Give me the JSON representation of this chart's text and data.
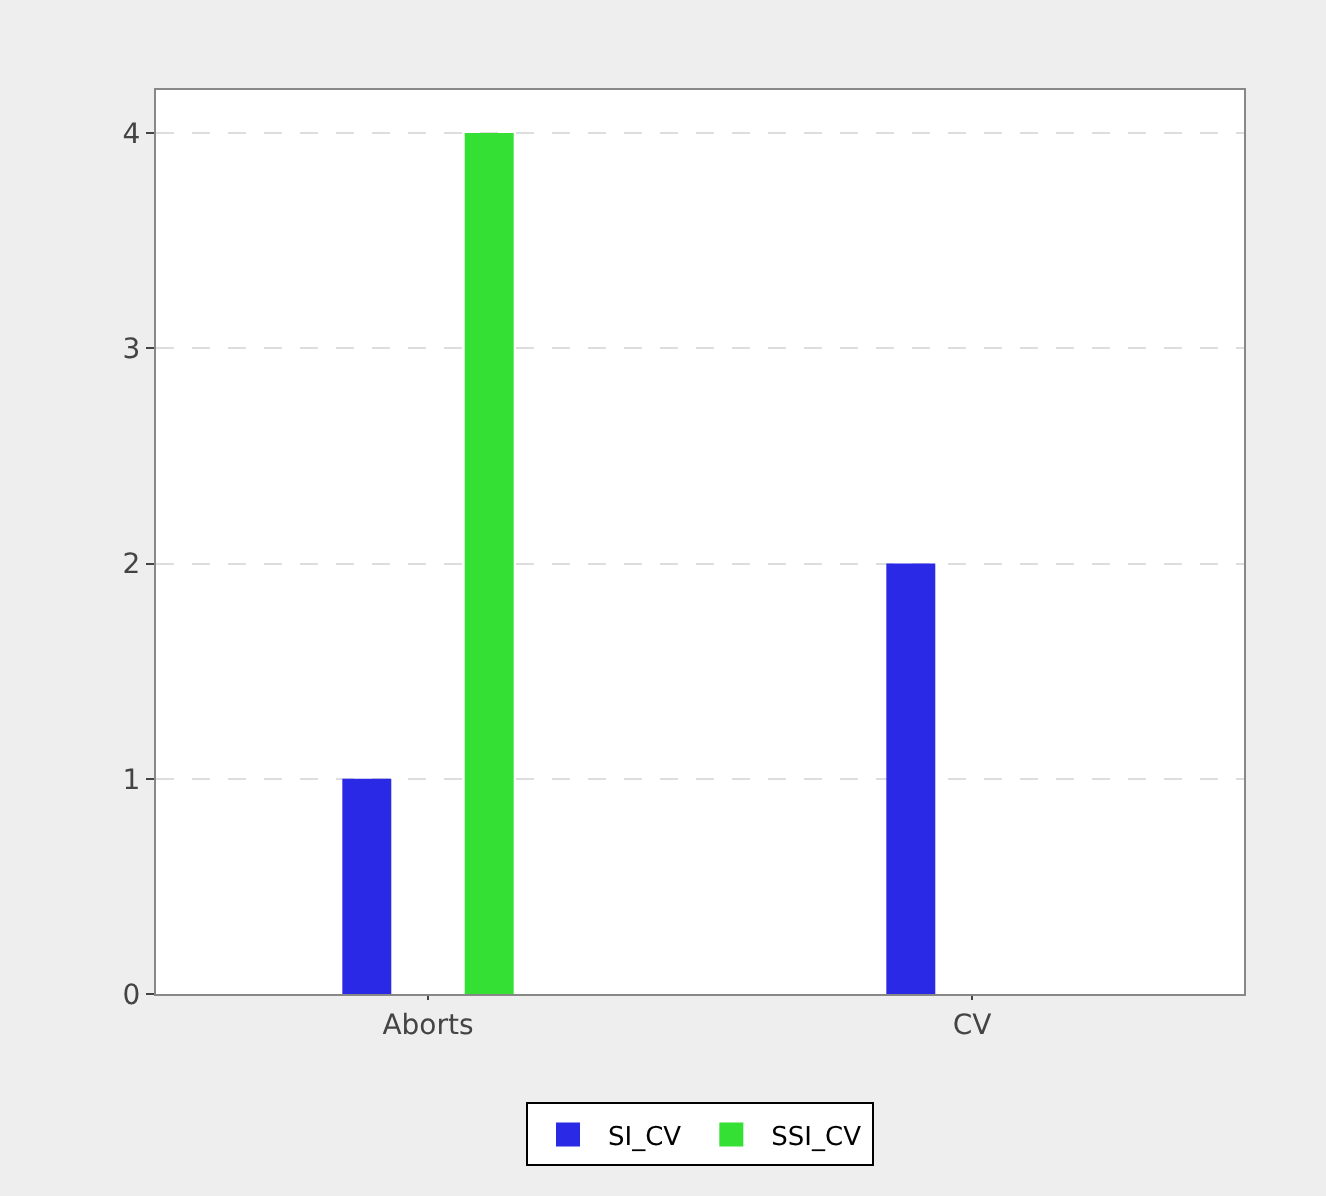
{
  "chart_data": {
    "type": "bar",
    "categories": [
      "Aborts",
      "CV"
    ],
    "series": [
      {
        "name": "SI_CV",
        "color": "#2a2ae6",
        "values": [
          1,
          2
        ]
      },
      {
        "name": "SSI_CV",
        "color": "#33e033",
        "values": [
          4,
          0
        ]
      }
    ],
    "ylim": [
      0,
      4.2
    ],
    "yticks": [
      0,
      1,
      2,
      3,
      4
    ],
    "grid": "y",
    "legend": "bottom"
  }
}
